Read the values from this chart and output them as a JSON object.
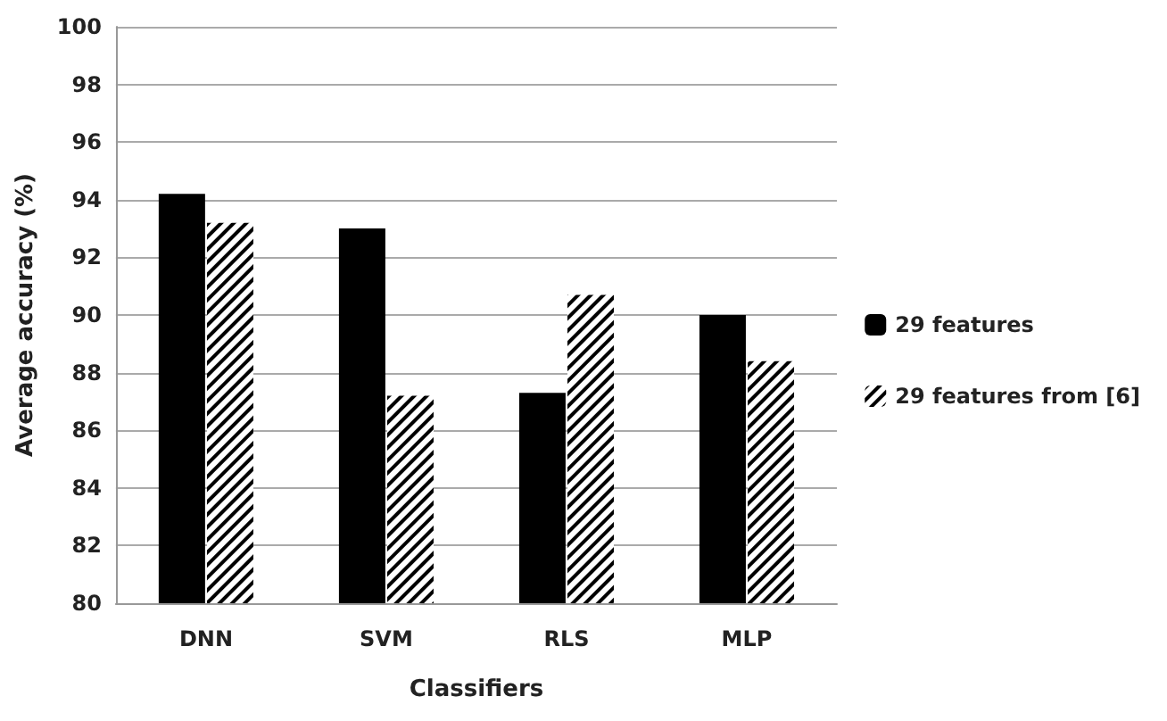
{
  "chart_data": {
    "type": "bar",
    "xlabel": "Classifiers",
    "ylabel": "Average accuracy (%)",
    "categories": [
      "DNN",
      "SVM",
      "RLS",
      "MLP"
    ],
    "series": [
      {
        "name": "29 features",
        "color": "#000000",
        "values": [
          94.2,
          93.0,
          87.3,
          90.0
        ]
      },
      {
        "name": "29 features from [6]",
        "color": "#000000",
        "values": [
          93.2,
          87.2,
          90.7,
          88.4
        ]
      }
    ],
    "ylim": [
      80,
      100
    ],
    "yticks": [
      80,
      82,
      84,
      86,
      88,
      90,
      92,
      94,
      96,
      98,
      100
    ],
    "grid": "y",
    "legend": "right"
  }
}
